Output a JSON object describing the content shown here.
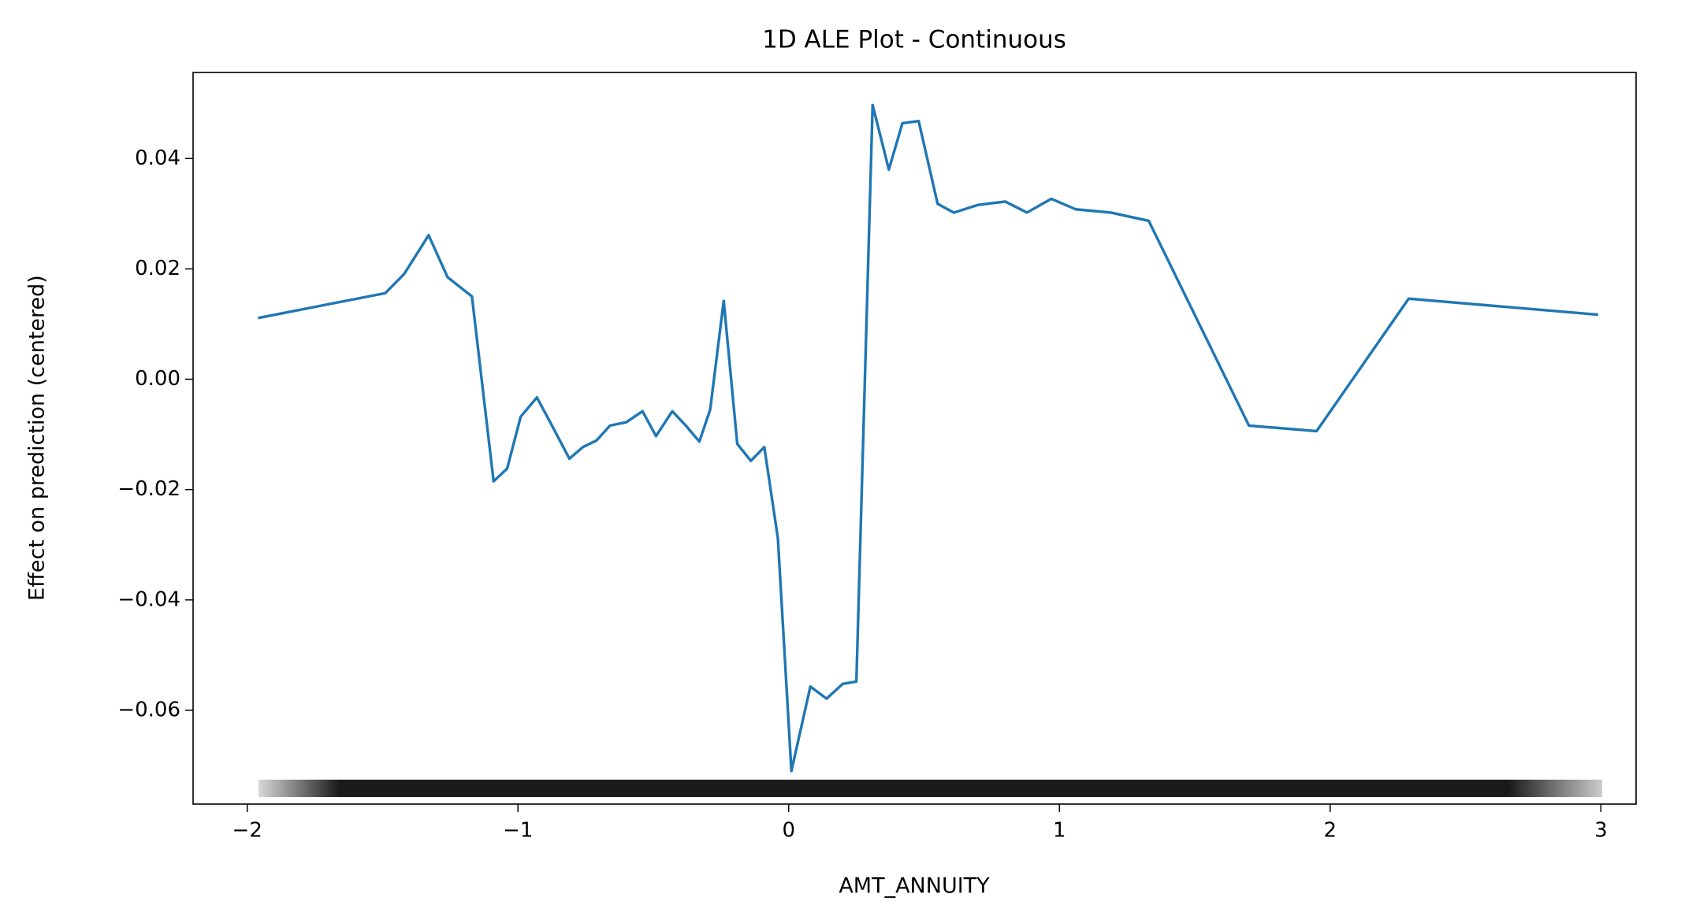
{
  "chart_data": {
    "type": "line",
    "title": "1D ALE Plot - Continuous",
    "x_label": "AMT_ANNUITY",
    "y_label": "Effect on prediction (centered)",
    "series": [
      {
        "color": "#1f77b4",
        "x": [
          -1.96,
          -1.49,
          -1.42,
          -1.33,
          -1.26,
          -1.17,
          -1.09,
          -1.04,
          -0.99,
          -0.93,
          -0.87,
          -0.81,
          -0.76,
          -0.71,
          -0.66,
          -0.6,
          -0.54,
          -0.49,
          -0.43,
          -0.38,
          -0.33,
          -0.29,
          -0.24,
          -0.19,
          -0.14,
          -0.09,
          -0.04,
          0.01,
          0.08,
          0.14,
          0.2,
          0.25,
          0.31,
          0.37,
          0.42,
          0.48,
          0.55,
          0.61,
          0.7,
          0.8,
          0.88,
          0.97,
          1.06,
          1.19,
          1.33,
          1.7,
          1.95,
          2.29,
          2.99
        ],
        "values": [
          0.0111,
          0.0156,
          0.0191,
          0.0261,
          0.0185,
          0.015,
          -0.0185,
          -0.0162,
          -0.0068,
          -0.0033,
          -0.0088,
          -0.0144,
          -0.0123,
          -0.0111,
          -0.0084,
          -0.0078,
          -0.0058,
          -0.0103,
          -0.0058,
          -0.0084,
          -0.0113,
          -0.0055,
          0.0142,
          -0.0117,
          -0.0148,
          -0.0123,
          -0.0288,
          -0.071,
          -0.0557,
          -0.0579,
          -0.0552,
          -0.0548,
          0.0497,
          0.038,
          0.0464,
          0.0468,
          0.0318,
          0.0302,
          0.0316,
          0.0322,
          0.0302,
          0.0327,
          0.0308,
          0.0302,
          0.0287,
          -0.0084,
          -0.0094,
          0.0146,
          0.0117
        ]
      }
    ],
    "xlim": [
      -2.2,
      3.13
    ],
    "ylim": [
      -0.077,
      0.0556
    ],
    "xticks": [
      {
        "value": -2,
        "label": "−2"
      },
      {
        "value": -1,
        "label": "−1"
      },
      0,
      1,
      2,
      3
    ],
    "yticks": [
      {
        "value": -0.06,
        "label": "−0.06"
      },
      {
        "value": -0.04,
        "label": "−0.04"
      },
      {
        "value": -0.02,
        "label": "−0.02"
      },
      {
        "value": 0,
        "label": "0.00"
      },
      {
        "value": 0.02,
        "label": "0.02"
      },
      {
        "value": 0.04,
        "label": "0.04"
      }
    ],
    "grid": false
  }
}
